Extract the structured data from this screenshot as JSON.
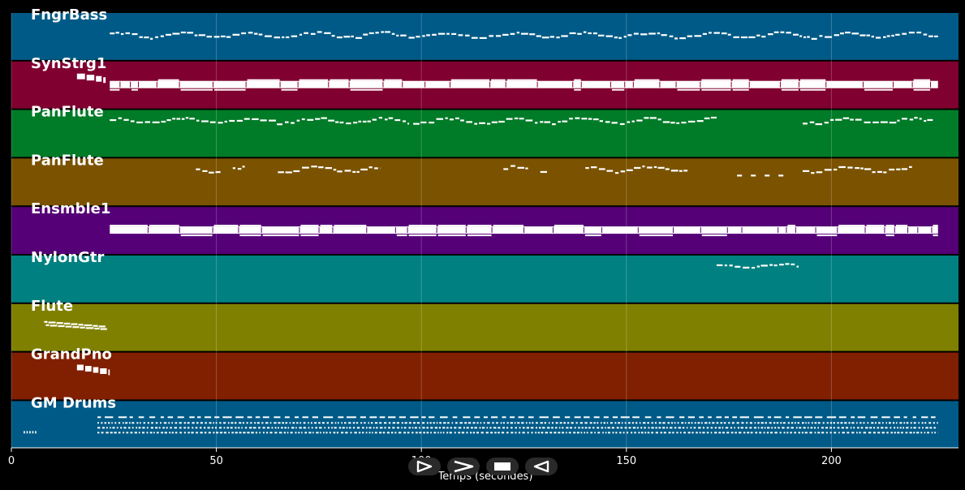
{
  "chart_data": {
    "type": "piano-roll",
    "title": "",
    "xlabel": "Temps (secondes)",
    "ylabel": "",
    "xlim": [
      0,
      231
    ],
    "xticks": [
      0,
      50,
      100,
      150,
      200
    ],
    "grid": true,
    "tracks": [
      {
        "name": "FngrBass",
        "color": "#005a87",
        "segments": [
          {
            "start": 24,
            "end": 226,
            "style": "wavy-thin"
          }
        ]
      },
      {
        "name": "SynStrg1",
        "color": "#800030",
        "segments": [
          {
            "start": 16,
            "end": 23,
            "style": "intro-thick"
          },
          {
            "start": 24,
            "end": 226,
            "style": "block-thick"
          }
        ]
      },
      {
        "name": "PanFlute",
        "color": "#007b27",
        "segments": [
          {
            "start": 24,
            "end": 97,
            "style": "wavy-thin"
          },
          {
            "start": 98,
            "end": 172,
            "style": "wavy-thin"
          },
          {
            "start": 193,
            "end": 225,
            "style": "wavy-thin"
          }
        ]
      },
      {
        "name": "PanFlute",
        "color": "#7b5300",
        "segments": [
          {
            "start": 45,
            "end": 51,
            "style": "wavy-thin"
          },
          {
            "start": 54,
            "end": 57,
            "style": "wavy-thin"
          },
          {
            "start": 65,
            "end": 90,
            "style": "wavy-thin"
          },
          {
            "start": 120,
            "end": 126,
            "style": "wavy-thin"
          },
          {
            "start": 129,
            "end": 131,
            "style": "wavy-thin"
          },
          {
            "start": 140,
            "end": 165,
            "style": "wavy-thin"
          },
          {
            "start": 177,
            "end": 188,
            "style": "dashed"
          },
          {
            "start": 193,
            "end": 220,
            "style": "wavy-thin"
          }
        ]
      },
      {
        "name": "Ensmble1",
        "color": "#550077",
        "segments": [
          {
            "start": 24,
            "end": 226,
            "style": "block-thick"
          }
        ]
      },
      {
        "name": "NylonGtr",
        "color": "#008080",
        "segments": [
          {
            "start": 172,
            "end": 192,
            "style": "wavy-thin"
          }
        ]
      },
      {
        "name": "Flute",
        "color": "#808000",
        "segments": [
          {
            "start": 8,
            "end": 23,
            "style": "descending"
          }
        ]
      },
      {
        "name": "GrandPno",
        "color": "#802000",
        "segments": [
          {
            "start": 16,
            "end": 24,
            "style": "intro-thick"
          }
        ]
      },
      {
        "name": "GM Drums",
        "color": "#005a87",
        "segments": [
          {
            "start": 3,
            "end": 6,
            "style": "dotted"
          },
          {
            "start": 21,
            "end": 226,
            "style": "drums"
          }
        ]
      }
    ]
  },
  "controls": {
    "play_icon": "play-icon",
    "fast_forward_icon": "fast-forward-icon",
    "stop_icon": "stop-icon",
    "rewind_icon": "rewind-icon"
  }
}
